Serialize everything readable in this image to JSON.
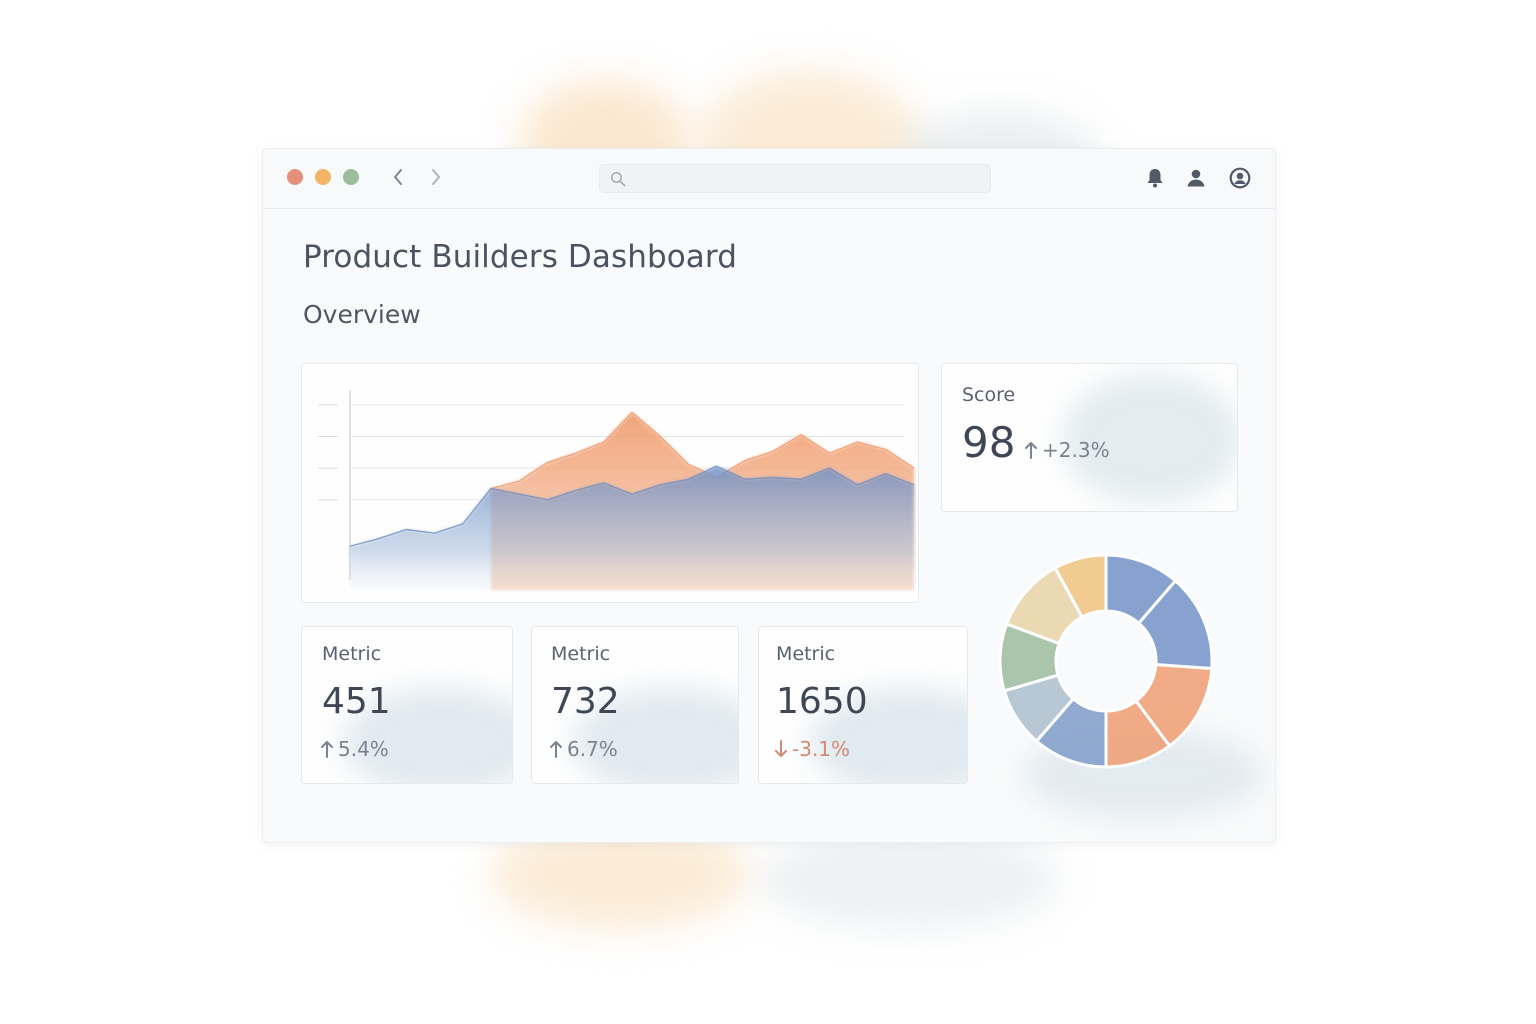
{
  "window": {
    "traffic_lights": [
      {
        "name": "close",
        "color": "#e5917a"
      },
      {
        "name": "minimize",
        "color": "#f2b566"
      },
      {
        "name": "maximize",
        "color": "#9bbd9a"
      }
    ],
    "nav": {
      "back_icon": "chevron-left-icon",
      "forward_icon": "chevron-right-icon"
    },
    "search": {
      "placeholder": "",
      "value": "",
      "icon": "search-icon"
    },
    "header_icons": [
      "bell-icon",
      "user-icon",
      "account-circle-icon"
    ]
  },
  "page": {
    "title": "Product Builders Dashboard",
    "section": "Overview"
  },
  "score": {
    "label": "Score",
    "value": "98",
    "delta": "+2.3%",
    "direction": "up"
  },
  "metrics": [
    {
      "label": "Metric",
      "value": "451",
      "delta": "5.4%",
      "direction": "up"
    },
    {
      "label": "Metric",
      "value": "732",
      "delta": "6.7%",
      "direction": "up"
    },
    {
      "label": "Metric",
      "value": "1650",
      "delta": "-3.1%",
      "direction": "down"
    }
  ],
  "colors": {
    "accent_blue": "#6f8fc4",
    "accent_orange": "#ef9a6b",
    "accent_yellow": "#efc27a",
    "accent_green": "#9ab89a",
    "accent_sand": "#e8d2a2",
    "accent_grey_blue": "#a9bccb",
    "up": "#7a8390",
    "down": "#d28a72"
  },
  "chart_data": [
    {
      "type": "area",
      "title": "",
      "xlabel": "",
      "ylabel": "",
      "grid": true,
      "x": [
        0,
        1,
        2,
        3,
        4,
        5,
        6,
        7,
        8,
        9,
        10,
        11,
        12,
        13,
        14,
        15,
        16,
        17,
        18,
        19,
        20
      ],
      "ylim": [
        0,
        100
      ],
      "series": [
        {
          "color": "#6f8fc4",
          "values": [
            16,
            20,
            25,
            23,
            28,
            47,
            44,
            41,
            46,
            50,
            44,
            49,
            52,
            59,
            52,
            53,
            52,
            58,
            49,
            55,
            49
          ]
        },
        {
          "color": "#ef9a6b",
          "values": [
            null,
            null,
            null,
            null,
            null,
            47,
            51,
            61,
            66,
            72,
            88,
            75,
            60,
            53,
            62,
            67,
            76,
            66,
            72,
            68,
            58
          ]
        }
      ]
    },
    {
      "type": "pie",
      "title": "",
      "donut": true,
      "slices": [
        {
          "value": 10,
          "color": "#6f8fc4"
        },
        {
          "value": 13,
          "color": "#6f8fc4"
        },
        {
          "value": 12,
          "color": "#ef9a6b"
        },
        {
          "value": 9,
          "color": "#ef9a6b"
        },
        {
          "value": 10,
          "color": "#7b98c7"
        },
        {
          "value": 8,
          "color": "#a9bccb"
        },
        {
          "value": 9,
          "color": "#9ab89a"
        },
        {
          "value": 10,
          "color": "#e8d2a2"
        },
        {
          "value": 7,
          "color": "#efc27a"
        }
      ]
    }
  ]
}
